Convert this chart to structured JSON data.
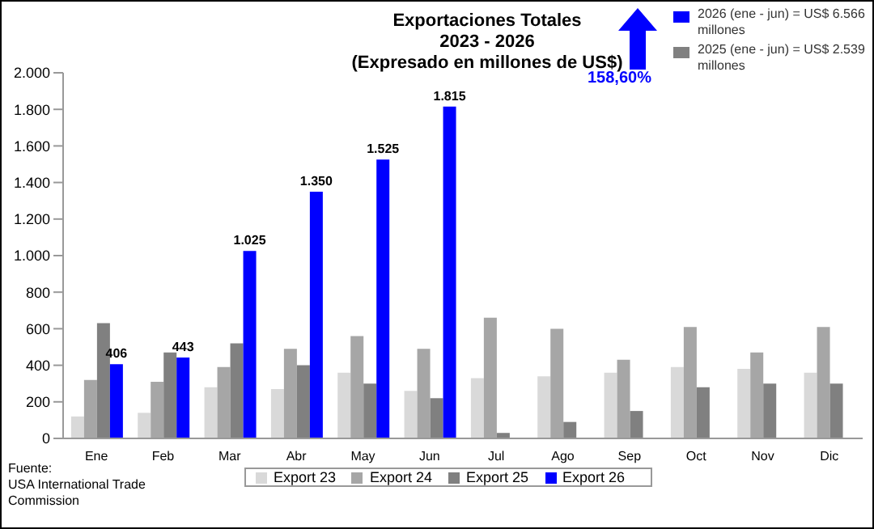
{
  "chart_data": {
    "type": "bar",
    "title": "Exportaciones Totales\n2023 - 2026\n(Expresado en millones de US$)",
    "categories": [
      "Ene",
      "Feb",
      "Mar",
      "Abr",
      "May",
      "Jun",
      "Jul",
      "Ago",
      "Sep",
      "Oct",
      "Nov",
      "Dic"
    ],
    "series": [
      {
        "name": "Export 23",
        "color": "#d9d9d9",
        "values": [
          120,
          140,
          280,
          270,
          360,
          260,
          330,
          340,
          360,
          390,
          380,
          360
        ]
      },
      {
        "name": "Export 24",
        "color": "#a6a6a6",
        "values": [
          320,
          310,
          390,
          490,
          560,
          490,
          660,
          600,
          430,
          610,
          470,
          610
        ]
      },
      {
        "name": "Export 25",
        "color": "#808080",
        "values": [
          630,
          470,
          520,
          400,
          300,
          220,
          30,
          90,
          150,
          280,
          300,
          300
        ]
      },
      {
        "name": "Export 26",
        "color": "#0000ff",
        "values": [
          406,
          443,
          1025,
          1350,
          1525,
          1815,
          null,
          null,
          null,
          null,
          null,
          null
        ],
        "value_labels": [
          "406",
          "443",
          "1.025",
          "1.350",
          "1.525",
          "1.815",
          null,
          null,
          null,
          null,
          null,
          null
        ]
      }
    ],
    "ylim": [
      0,
      2000
    ],
    "yticks": [
      0,
      {
        "value": 200,
        "label": "200"
      },
      {
        "value": 400,
        "label": "400"
      },
      {
        "value": 600,
        "label": "600"
      },
      {
        "value": 800,
        "label": "800"
      },
      {
        "value": 1000,
        "label": "1.000"
      },
      {
        "value": 1200,
        "label": "1.200"
      },
      {
        "value": 1400,
        "label": "1.400"
      },
      {
        "value": 1600,
        "label": "1.600"
      },
      {
        "value": 1800,
        "label": "1.800"
      },
      {
        "value": 2000,
        "label": "2.000"
      }
    ],
    "grid": false,
    "legend": "bottom",
    "annotations": [
      "158,60%",
      "2026 (ene - jun) = US$ 6.566 millones",
      "2025 (ene - jun) = US$ 2.539 millones",
      "Fuente:\nUSA International Trade Commission"
    ]
  }
}
